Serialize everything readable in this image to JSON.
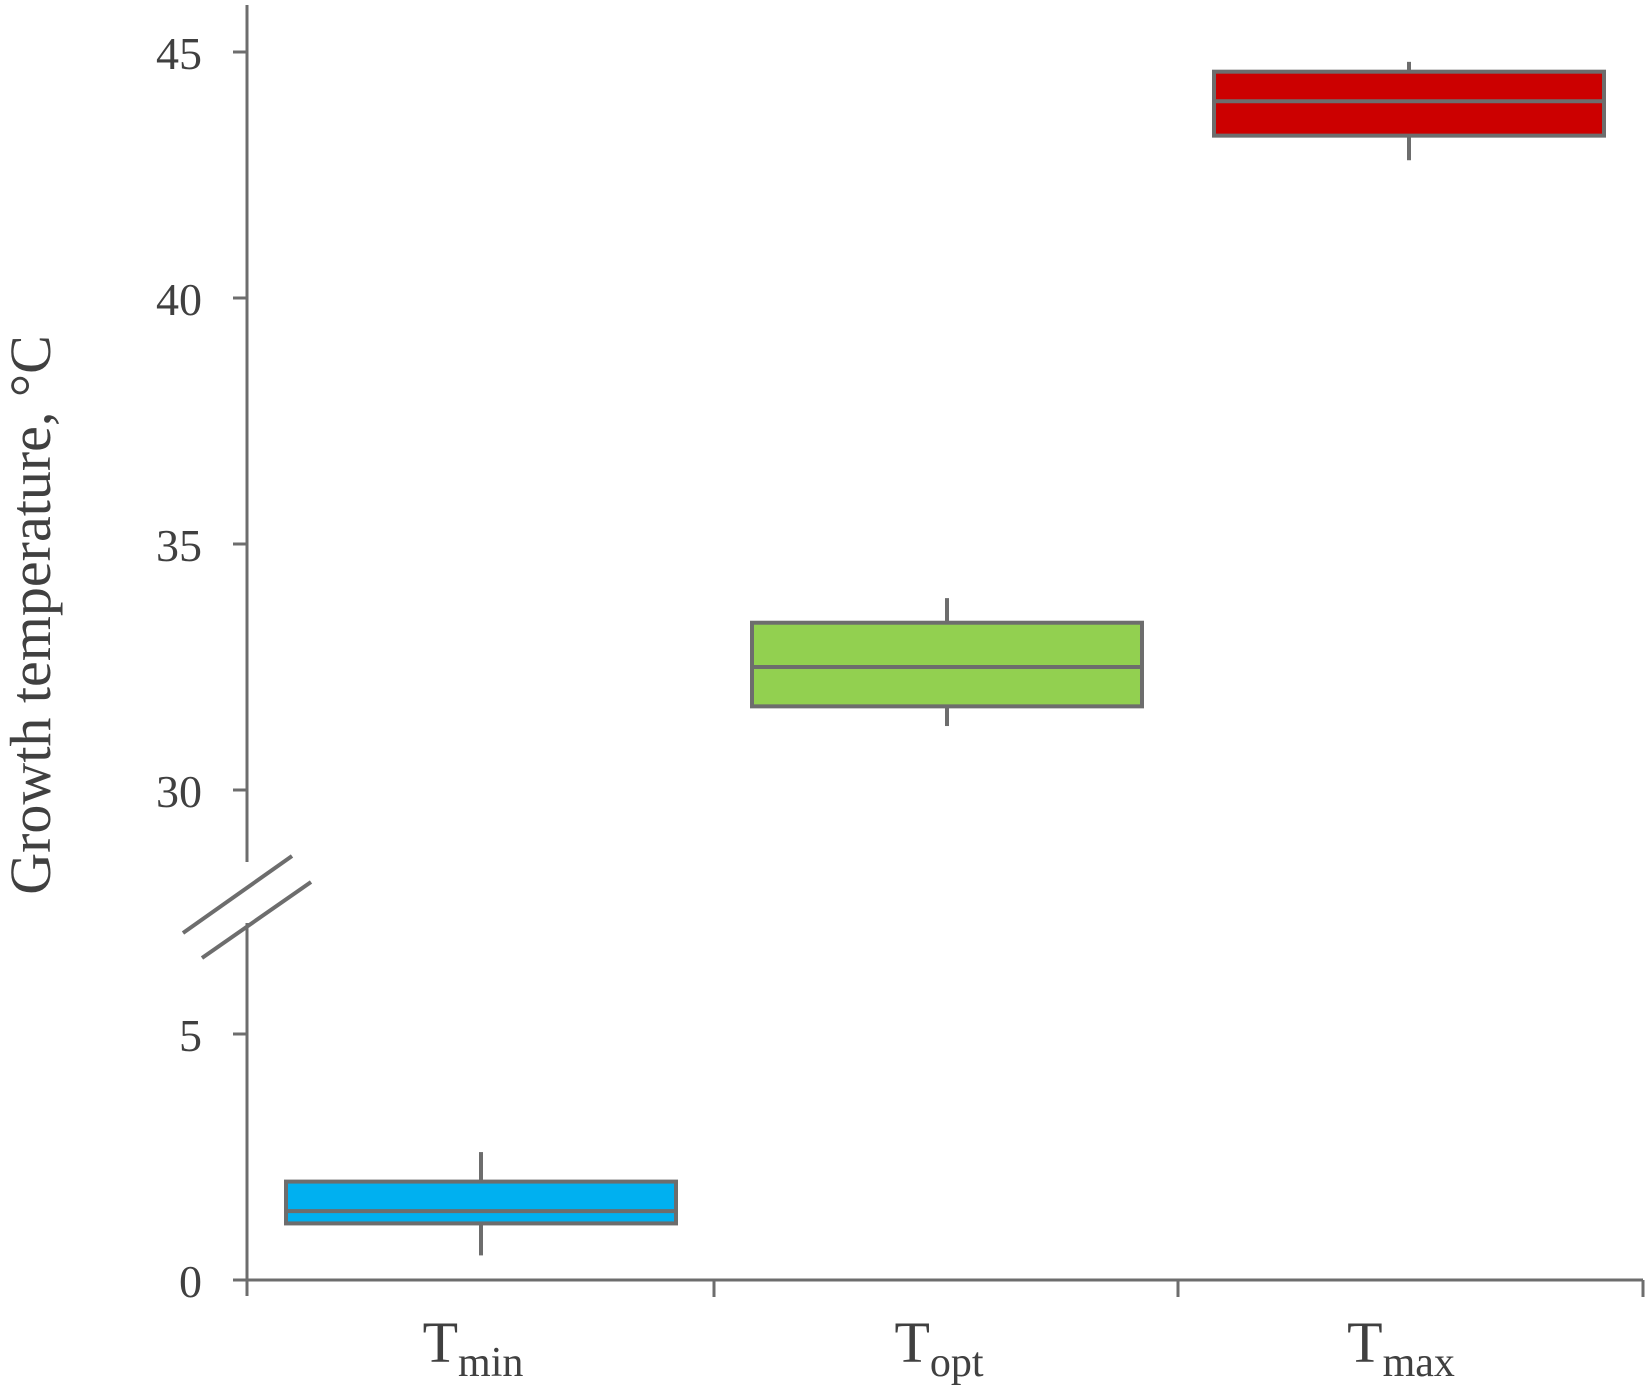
{
  "chart_data": {
    "type": "box",
    "title": "",
    "xlabel": "",
    "ylabel": "Growth temperature, °C",
    "axis_break": {
      "lower_segment": [
        0,
        7
      ],
      "upper_segment": [
        28.3,
        46
      ]
    },
    "y_ticks_lower": [
      0,
      5
    ],
    "y_ticks_upper": [
      30,
      35,
      40,
      45
    ],
    "grid": false,
    "legend": "none",
    "categories": [
      {
        "base": "T",
        "sub": "min"
      },
      {
        "base": "T",
        "sub": "opt"
      },
      {
        "base": "T",
        "sub": "max"
      }
    ],
    "boxes": [
      {
        "category": "Tmin",
        "whisker_low": 0.5,
        "q1": 1.15,
        "median": 1.4,
        "q3": 2.0,
        "whisker_high": 2.6,
        "color": "#00B0F0"
      },
      {
        "category": "Topt",
        "whisker_low": 31.3,
        "q1": 31.7,
        "median": 32.5,
        "q3": 33.4,
        "whisker_high": 33.9,
        "color": "#92D050"
      },
      {
        "category": "Tmax",
        "whisker_low": 42.8,
        "q1": 43.3,
        "median": 44.0,
        "q3": 44.6,
        "whisker_high": 44.8,
        "color": "#CC0000"
      }
    ],
    "styles": {
      "axis_color": "#6d6d6d",
      "box_edge_color": "#6d6d6d"
    }
  }
}
